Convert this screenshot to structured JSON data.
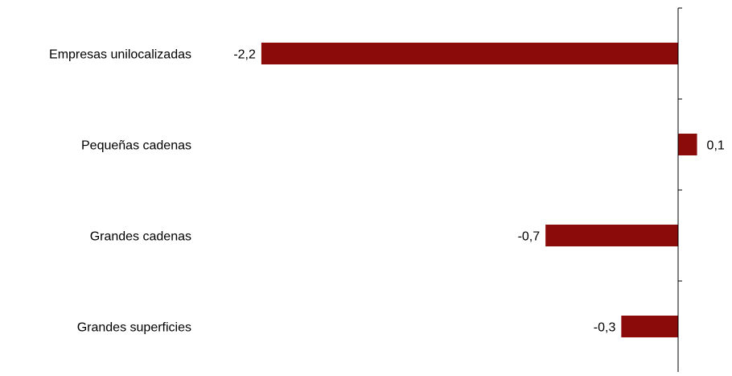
{
  "chart_data": {
    "type": "bar",
    "orientation": "horizontal",
    "categories": [
      "Empresas unilocalizadas",
      "Pequeñas cadenas",
      "Grandes cadenas",
      "Grandes superficies"
    ],
    "values": [
      -2.2,
      0.1,
      -0.7,
      -0.3
    ],
    "value_labels": [
      "-2,2",
      "0,1",
      "-0,7",
      "-0,3"
    ],
    "title": "",
    "xlabel": "",
    "ylabel": "",
    "xlim": [
      -2.4,
      0.2
    ],
    "grid": false,
    "legend": "none",
    "colors": {
      "bar": "#8B0A0A",
      "axis": "#000000",
      "text": "#000000"
    }
  }
}
